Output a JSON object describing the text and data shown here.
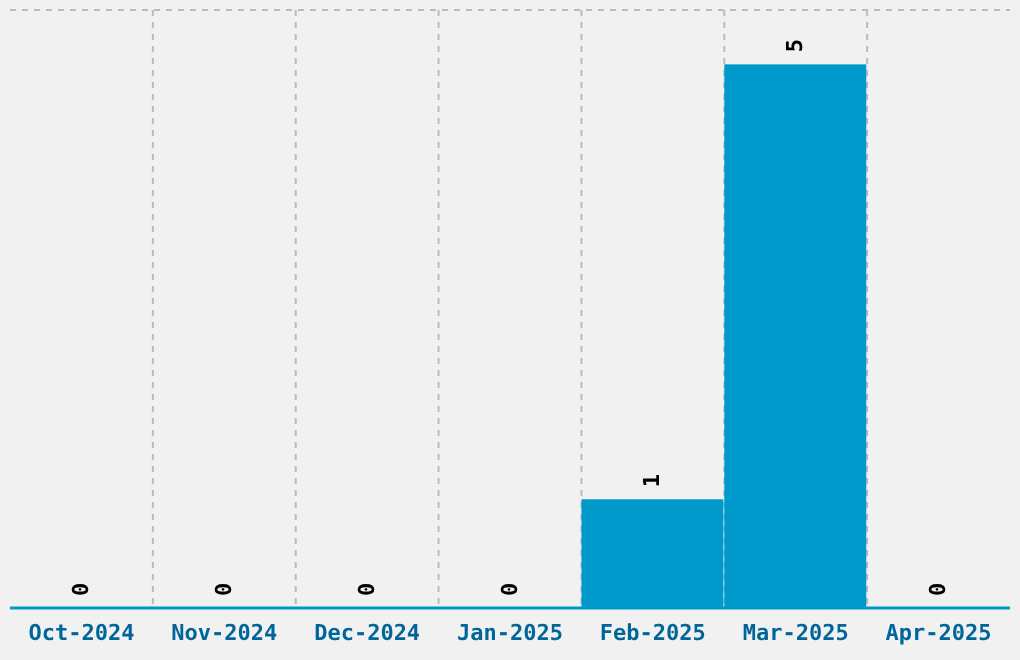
{
  "chart_data": {
    "type": "bar",
    "categories": [
      "Oct-2024",
      "Nov-2024",
      "Dec-2024",
      "Jan-2025",
      "Feb-2025",
      "Mar-2025",
      "Apr-2025"
    ],
    "values": [
      0,
      0,
      0,
      0,
      1,
      5,
      0
    ],
    "color": "#0099cc",
    "ylim": [
      0,
      5.5
    ],
    "tick_labels": "x",
    "grid": true,
    "data_labels": true
  }
}
